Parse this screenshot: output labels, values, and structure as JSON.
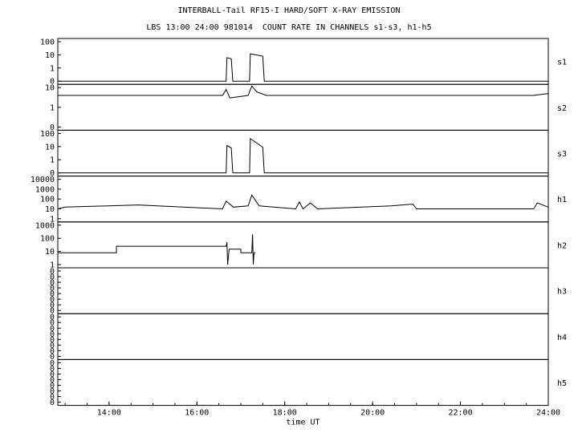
{
  "header": {
    "title": "INTERBALL-Tail RF15-I HARD/SOFT X-RAY EMISSION",
    "subtitle": "LBS 13:00 24:00 981014  COUNT RATE IN CHANNELS s1-s3, h1-h5"
  },
  "chart_data": {
    "type": "line",
    "title": "INTERBALL-Tail RF15-I HARD/SOFT X-RAY EMISSION",
    "subtitle": "LBS 13:00 24:00 981014  COUNT RATE IN CHANNELS s1-s3, h1-h5",
    "xlabel": "time UT",
    "xlim": [
      "12:50",
      "24:00"
    ],
    "x_ticks": [
      "14:00",
      "16:00",
      "18:00",
      "20:00",
      "22:00",
      "24:00"
    ],
    "x_scale": "time",
    "y_scale": "log",
    "grid": false,
    "panels": [
      {
        "name": "s1",
        "y_ticks": [
          "100",
          "10",
          "1",
          "0"
        ],
        "points": [
          [
            "12:50",
            0
          ],
          [
            "16:40",
            0
          ],
          [
            "16:41",
            6
          ],
          [
            "16:47",
            5
          ],
          [
            "16:49",
            0
          ],
          [
            "17:12",
            0
          ],
          [
            "17:13",
            12
          ],
          [
            "17:30",
            8
          ],
          [
            "17:32",
            0
          ],
          [
            "24:00",
            0
          ]
        ]
      },
      {
        "name": "s2",
        "y_ticks": [
          "10",
          "1",
          "0"
        ],
        "points": [
          [
            "12:50",
            4
          ],
          [
            "16:35",
            4
          ],
          [
            "16:40",
            8
          ],
          [
            "16:45",
            3
          ],
          [
            "17:10",
            4
          ],
          [
            "17:15",
            15
          ],
          [
            "17:22",
            6
          ],
          [
            "17:35",
            4
          ],
          [
            "23:40",
            4
          ],
          [
            "24:00",
            5
          ]
        ]
      },
      {
        "name": "s3",
        "y_ticks": [
          "100",
          "10",
          "1",
          "0"
        ],
        "points": [
          [
            "12:50",
            0
          ],
          [
            "16:40",
            0
          ],
          [
            "16:41",
            12
          ],
          [
            "16:47",
            8
          ],
          [
            "16:49",
            0
          ],
          [
            "17:12",
            0
          ],
          [
            "17:13",
            40
          ],
          [
            "17:30",
            9
          ],
          [
            "17:32",
            0
          ],
          [
            "24:00",
            0
          ]
        ]
      },
      {
        "name": "h1",
        "y_ticks": [
          "10000",
          "1000",
          "100",
          "10",
          "1"
        ],
        "points": [
          [
            "12:50",
            10
          ],
          [
            "13:00",
            15
          ],
          [
            "14:40",
            25
          ],
          [
            "16:35",
            10
          ],
          [
            "16:40",
            60
          ],
          [
            "16:50",
            15
          ],
          [
            "17:10",
            20
          ],
          [
            "17:15",
            250
          ],
          [
            "17:25",
            20
          ],
          [
            "18:15",
            10
          ],
          [
            "18:20",
            50
          ],
          [
            "18:25",
            10
          ],
          [
            "18:35",
            40
          ],
          [
            "18:45",
            10
          ],
          [
            "20:25",
            20
          ],
          [
            "20:55",
            30
          ],
          [
            "21:00",
            10
          ],
          [
            "23:40",
            10
          ],
          [
            "23:45",
            40
          ],
          [
            "24:00",
            15
          ]
        ]
      },
      {
        "name": "h2",
        "y_ticks": [
          "1000",
          "100",
          "10",
          "1"
        ],
        "points": [
          [
            "12:50",
            8
          ],
          [
            "14:10",
            8
          ],
          [
            "14:10",
            25
          ],
          [
            "16:40",
            25
          ],
          [
            "16:41",
            50
          ],
          [
            "16:42",
            1
          ],
          [
            "16:44",
            15
          ],
          [
            "17:00",
            15
          ],
          [
            "17:00",
            8
          ],
          [
            "17:15",
            8
          ],
          [
            "17:16",
            200
          ],
          [
            "17:17",
            1
          ],
          [
            "17:18",
            8
          ],
          [
            "17:20",
            8
          ]
        ]
      },
      {
        "name": "h3",
        "y_ticks": [
          "0",
          "0",
          "0",
          "0",
          "0",
          "0",
          "0",
          "0"
        ],
        "points": []
      },
      {
        "name": "h4",
        "y_ticks": [
          "0",
          "0",
          "0",
          "0",
          "0",
          "0",
          "0",
          "0"
        ],
        "points": []
      },
      {
        "name": "h5",
        "y_ticks": [
          "0",
          "0",
          "0",
          "0",
          "0",
          "0",
          "0",
          "0"
        ],
        "points": []
      }
    ]
  }
}
